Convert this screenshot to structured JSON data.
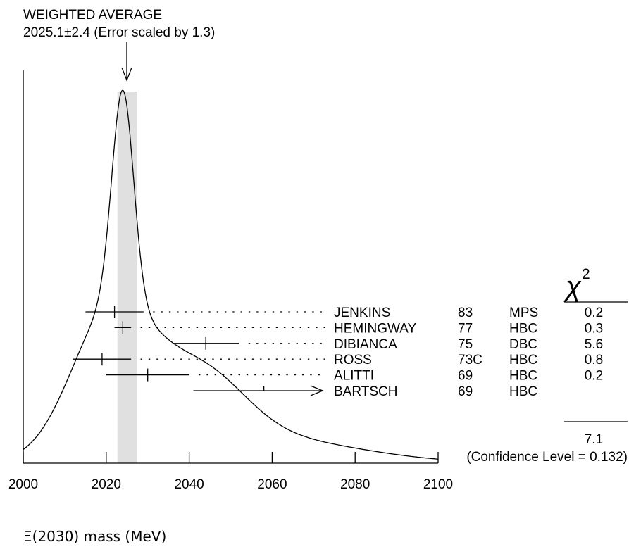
{
  "chart_data": {
    "type": "ideogram",
    "title": "WEIGHTED AVERAGE",
    "subtitle": "2025.1±2.4 (Error scaled by 1.3)",
    "weighted_average": {
      "value": 2025.1,
      "error": 2.4,
      "error_scale": 1.3
    },
    "xlabel": "Ξ(2030) mass (MeV)",
    "xlim": [
      2000,
      2100
    ],
    "x_ticks": [
      2000,
      2020,
      2040,
      2060,
      2080,
      2100
    ],
    "chi2_header": "χ",
    "chi2_header_sup": "2",
    "chi2_total": "7.1",
    "confidence_level": "(Confidence Level = 0.132)",
    "measurements": [
      {
        "author": "JENKINS",
        "year": "83",
        "technique": "MPS",
        "value": 2022.0,
        "err_low": 7.0,
        "err_high": 7.0,
        "chi2": "0.2",
        "arrow": false
      },
      {
        "author": "HEMINGWAY",
        "year": "77",
        "technique": "HBC",
        "value": 2024.0,
        "err_low": 2.0,
        "err_high": 2.0,
        "chi2": "0.3",
        "arrow": false
      },
      {
        "author": "DIBIANCA",
        "year": "75",
        "technique": "DBC",
        "value": 2044.0,
        "err_low": 8.0,
        "err_high": 8.0,
        "chi2": "5.6",
        "arrow": false
      },
      {
        "author": "ROSS",
        "year": "73C",
        "technique": "HBC",
        "value": 2019.0,
        "err_low": 7.0,
        "err_high": 7.0,
        "chi2": "0.8",
        "arrow": false
      },
      {
        "author": "ALITTI",
        "year": "69",
        "technique": "HBC",
        "value": 2030.0,
        "err_low": 10.0,
        "err_high": 10.0,
        "chi2": "0.2",
        "arrow": false
      },
      {
        "author": "BARTSCH",
        "year": "69",
        "technique": "HBC",
        "value": 2058.0,
        "err_low": 17.0,
        "err_high": 0,
        "chi2": "",
        "arrow": true
      }
    ]
  }
}
